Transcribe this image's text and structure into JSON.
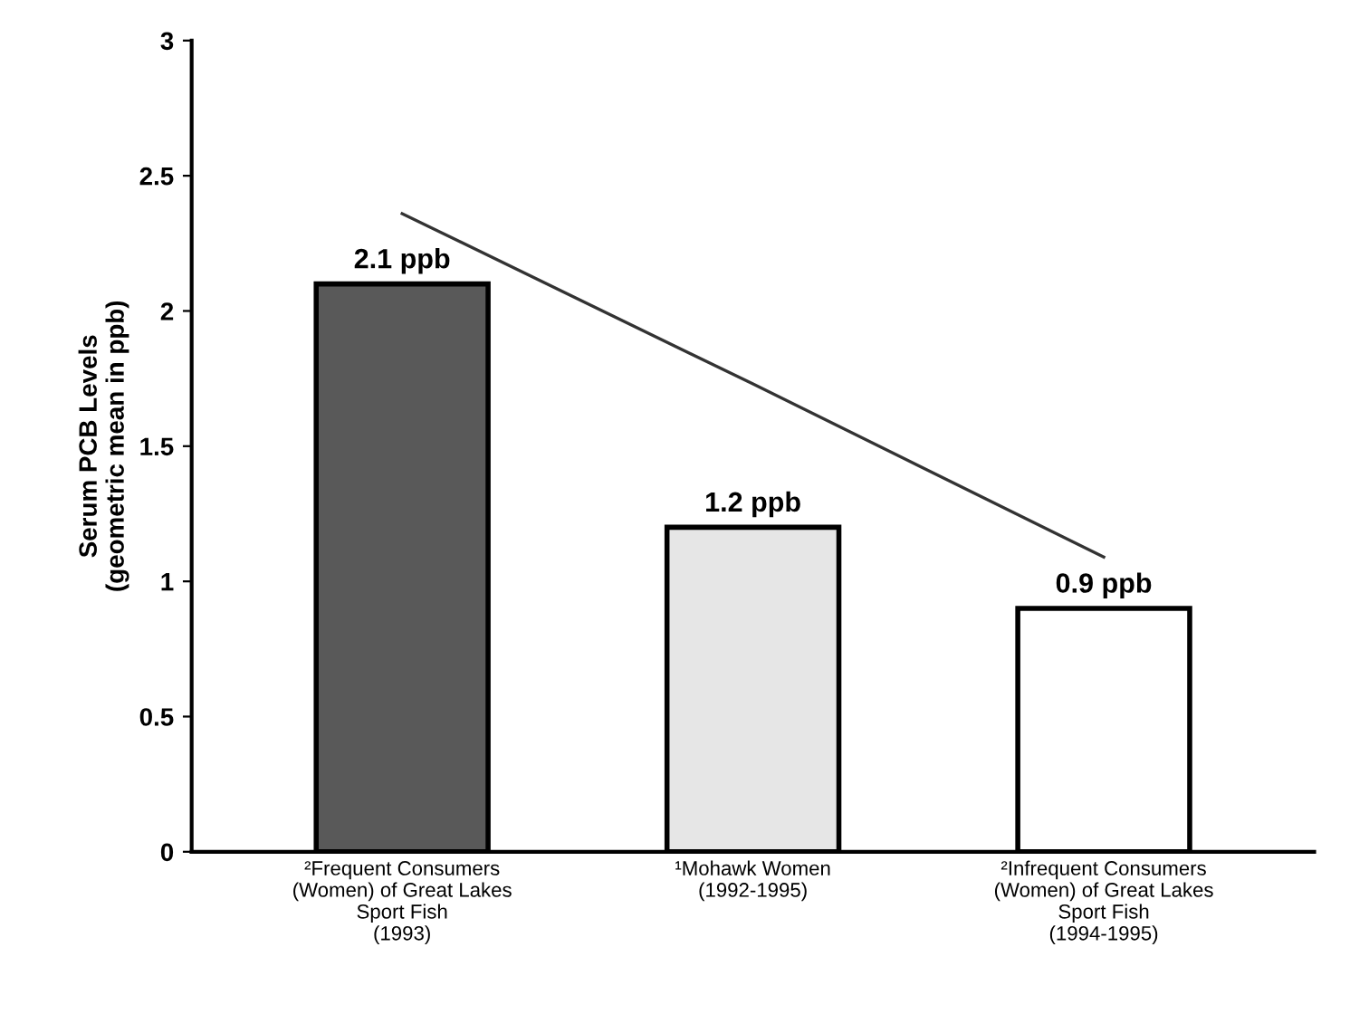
{
  "chart_data": {
    "type": "bar",
    "ylabel": "Serum PCB Levels\n(geometric mean in ppb)",
    "categories": [
      "²Frequent Consumers\n(Women) of Great Lakes\nSport Fish\n(1993)",
      "¹Mohawk Women\n(1992-1995)",
      "²Infrequent Consumers\n(Women) of Great Lakes\nSport Fish\n(1994-1995)"
    ],
    "series": [
      {
        "colors": [
          "#595959",
          "#e6e6e6",
          "#ffffff"
        ],
        "values": [
          2.1,
          1.2,
          0.9
        ],
        "value_labels": [
          "2.1 ppb",
          "1.2 ppb",
          "0.9 ppb"
        ]
      },
      {
        "type": "line",
        "color": "#333333",
        "values": [
          2.36,
          1.73,
          1.09
        ]
      }
    ],
    "ylim": [
      0,
      3
    ],
    "yticks": [
      0,
      0.5,
      1,
      1.5,
      2,
      2.5,
      3
    ],
    "grid": false,
    "legend": false,
    "marker": "none",
    "line_style": "solid"
  }
}
